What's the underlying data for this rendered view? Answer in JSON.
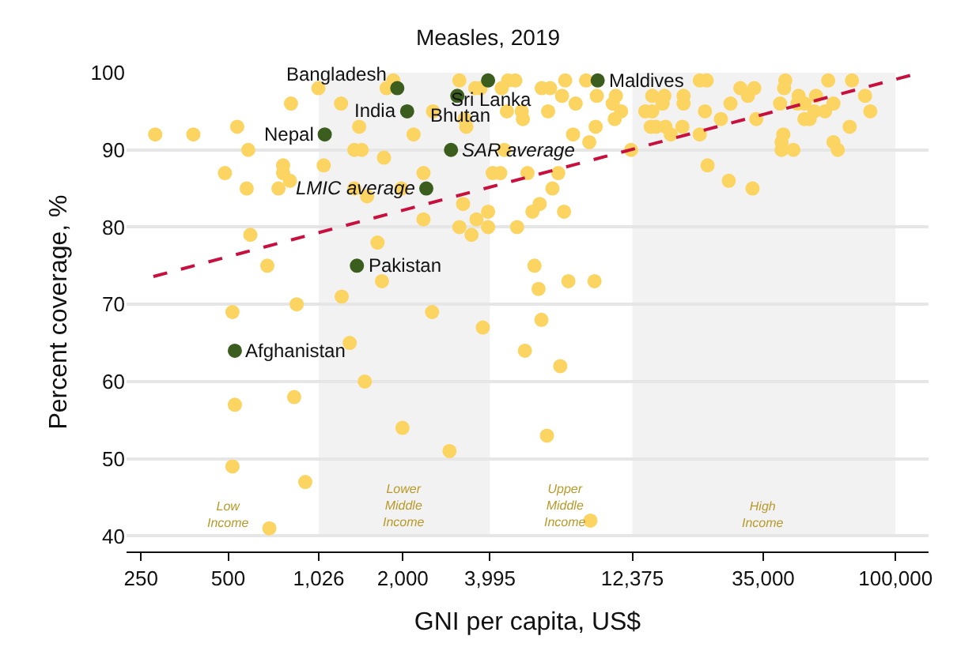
{
  "chart_data": {
    "type": "scatter",
    "title": "Measles, 2019",
    "xlabel": "GNI per capita, US$",
    "ylabel": "Percent coverage, %",
    "log": "x",
    "grid": "y",
    "marker": "circle",
    "xlim": [
      223,
      130000
    ],
    "xticks": [
      250,
      500,
      {
        "value": 1026,
        "label": "1,026"
      },
      {
        "value": 2000,
        "label": "2,000"
      },
      {
        "value": 3995,
        "label": "3,995"
      },
      {
        "value": 12375,
        "label": "12,375"
      },
      {
        "value": 35000,
        "label": "35,000"
      },
      {
        "value": 100000,
        "label": "100,000"
      }
    ],
    "ylim": [
      38,
      100
    ],
    "yticks": [
      40,
      50,
      60,
      70,
      80,
      90,
      100
    ],
    "bands": [
      {
        "axis": "x",
        "from": 1026,
        "to": 3995,
        "label": "Lower Middle Income",
        "color": "#f2f2f2"
      },
      {
        "axis": "x",
        "from": 12375,
        "to": 100000,
        "label": "High Income",
        "color": "#f2f2f2"
      }
    ],
    "series": [
      {
        "color": "#fcd462",
        "x": [
          280,
          379,
          537,
          823,
          1023,
          1225,
          1855,
          1758,
          1414,
          586,
          1361,
          1443,
          1722,
          487,
          773,
          773,
          816,
          1067,
          579,
          745,
          1361,
          1506,
          1977,
          596,
          682,
          1636,
          1694,
          1231,
          861,
          517,
          1312,
          1479,
          844,
          527,
          1994,
          517,
          922,
          693,
          3133,
          3556,
          3707,
          4613,
          4887,
          4385,
          2541,
          3266,
          3311,
          2178,
          2357,
          3228,
          2357,
          3133,
          3451,
          3589,
          3936,
          3936,
          4955,
          4477,
          4083,
          4335,
          5383,
          6871,
          6561,
          5929,
          5598,
          7194,
          4571,
          5140,
          5188,
          6339,
          6026,
          6442,
          7261,
          8570,
          7079,
          7889,
          9333,
          10590,
          10860,
          11320,
          10760,
          9247,
          7727,
          8790,
          12250,
          5689,
          5875,
          7447,
          9162,
          6012,
          2523,
          3775,
          5272,
          6982,
          2897,
          6281,
          8872,
          13710,
          14490,
          14490,
          15960,
          15740,
          14320,
          14930,
          16100,
          16790,
          18410,
          18580,
          18580,
          21130,
          22330,
          21130,
          22030,
          22490,
          25000,
          26980,
          29170,
          32580,
          30970,
          33110,
          26610,
          32140,
          41690,
          41300,
          40000,
          46340,
          45920,
          48530,
          53210,
          41020,
          40460,
          40460,
          44460,
          48530,
          50580,
          52480,
          57150,
          61090,
          58610,
          70790,
          61090,
          63240,
          69500,
          78520,
          81850
        ],
        "values": [
          92,
          92,
          93,
          96,
          98,
          96,
          99,
          98,
          93,
          90,
          90,
          90,
          89,
          87,
          88,
          87,
          86,
          88,
          85,
          85,
          85,
          84,
          85,
          79,
          75,
          78,
          73,
          71,
          70,
          69,
          65,
          60,
          58,
          57,
          54,
          49,
          47,
          41,
          99,
          98,
          98,
          99,
          99,
          98,
          95,
          94,
          93,
          92,
          87,
          83,
          81,
          80,
          79,
          81,
          82,
          80,
          80,
          90,
          87,
          87,
          87,
          87,
          85,
          83,
          82,
          82,
          95,
          95,
          94,
          95,
          98,
          98,
          99,
          99,
          97,
          96,
          97,
          96,
          97,
          95,
          94,
          93,
          92,
          91,
          90,
          75,
          72,
          73,
          73,
          68,
          69,
          67,
          64,
          62,
          51,
          53,
          42,
          95,
          95,
          97,
          97,
          96,
          93,
          93,
          93,
          92,
          93,
          97,
          96,
          99,
          99,
          92,
          95,
          88,
          94,
          96,
          98,
          98,
          97,
          94,
          86,
          85,
          99,
          98,
          96,
          97,
          96,
          96,
          97,
          92,
          91,
          90,
          90,
          94,
          94,
          95,
          95,
          96,
          99,
          99,
          91,
          90,
          93,
          97,
          95
        ]
      },
      {
        "color": "#3b5e1f",
        "x": [
          1914,
          2070,
          1076,
          1389,
          527,
          3083,
          3936,
          9397,
          2932,
          2410
        ],
        "values": [
          98,
          95,
          92,
          75,
          64,
          97,
          99,
          99,
          90,
          85
        ]
      },
      {
        "type": "line",
        "color": "#c8103e",
        "line_style": "dashed",
        "marker": "none",
        "x": [
          276,
          122000
        ],
        "values": [
          73.6,
          100
        ]
      }
    ],
    "annotations": [
      {
        "text": "Bangladesh",
        "x": 1914,
        "y": 98
      },
      {
        "text": "India",
        "x": 2070,
        "y": 95
      },
      {
        "text": "Nepal",
        "x": 1076,
        "y": 92
      },
      {
        "text": "Pakistan",
        "x": 1389,
        "y": 75
      },
      {
        "text": "Afghanistan",
        "x": 527,
        "y": 64
      },
      {
        "text": "Bhutan",
        "x": 3083,
        "y": 97
      },
      {
        "text": "Sri Lanka",
        "x": 3936,
        "y": 99
      },
      {
        "text": "Maldives",
        "x": 9397,
        "y": 99
      },
      {
        "text": "SAR average",
        "x": 2932,
        "y": 90
      },
      {
        "text": "LMIC average",
        "x": 2410,
        "y": 85
      },
      "Low Income",
      "Upper Middle Income"
    ]
  }
}
